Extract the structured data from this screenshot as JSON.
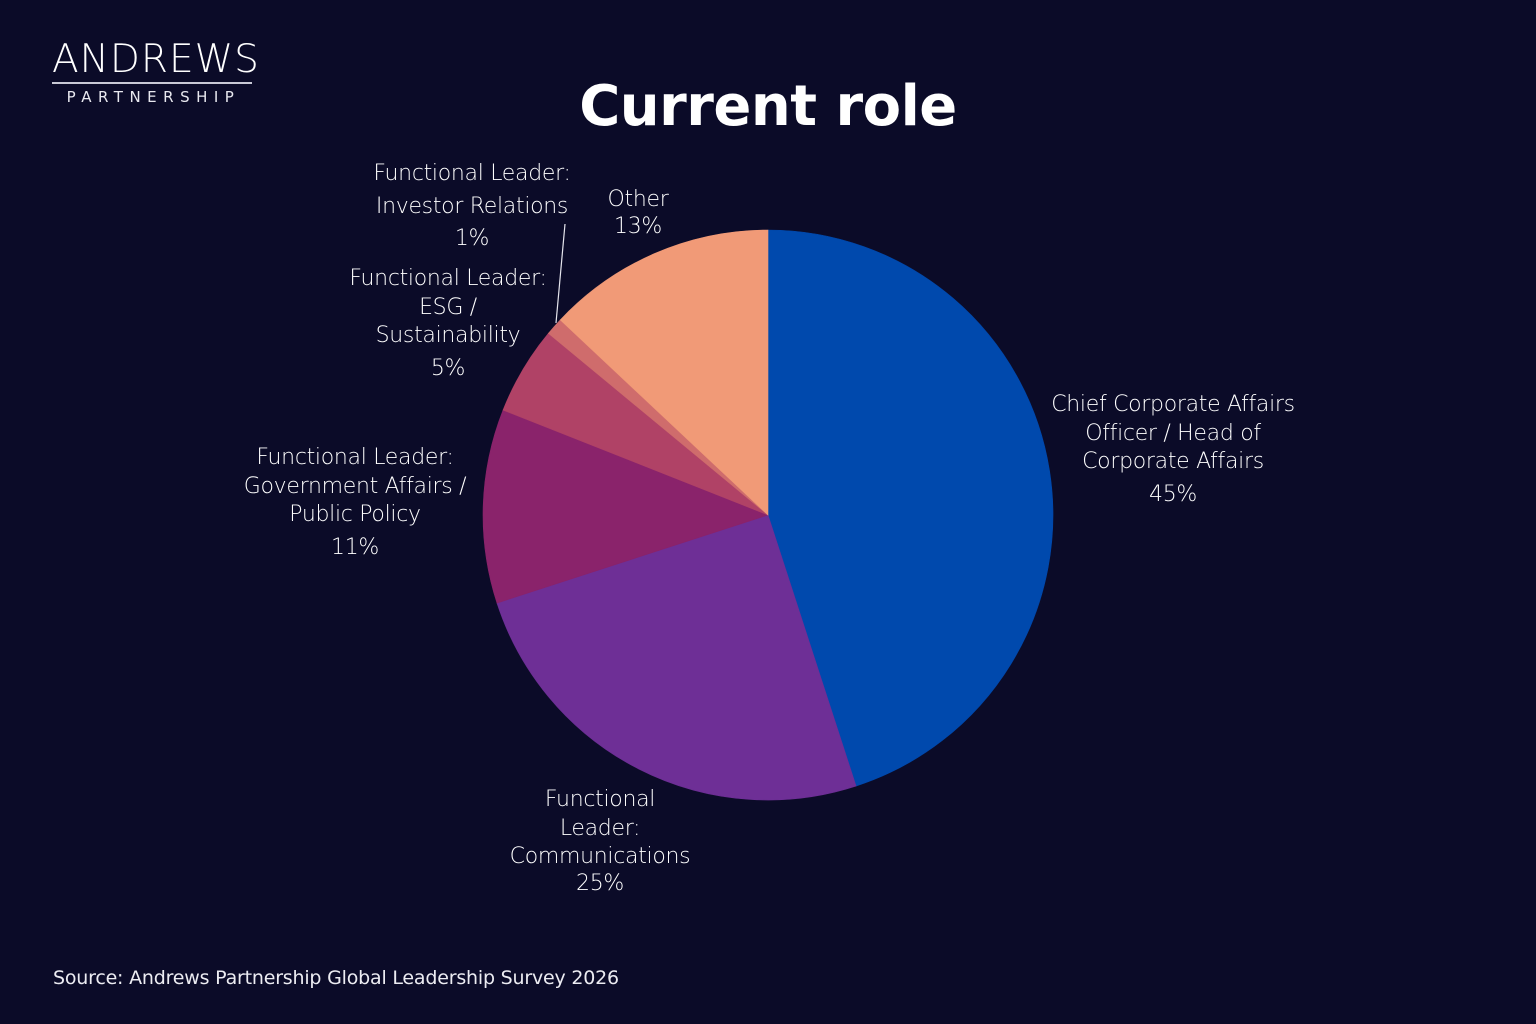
{
  "logo": {
    "main": "ANDREWS",
    "sub": "PARTNERSHIP"
  },
  "title": "Current role",
  "source": "Source: Andrews Partnership Global Leadership Survey 2026",
  "colors": {
    "background": "#0b0b28",
    "chief_corporate_affairs": "#0049ad",
    "communications": "#6e2f96",
    "government_affairs": "#8a236b",
    "esg": "#b04266",
    "investor_relations": "#cf6c6c",
    "other": "#f19a77"
  },
  "labels": {
    "cca": {
      "lines": [
        "Chief Corporate Affairs",
        "Officer / Head of",
        "Corporate Affairs"
      ],
      "pct": "45%"
    },
    "comms": {
      "lines": [
        "Functional",
        "Leader:",
        "Communications"
      ],
      "pct": "25%"
    },
    "gov": {
      "lines": [
        "Functional Leader:",
        "Government Affairs /",
        "Public Policy"
      ],
      "pct": "11%"
    },
    "esg": {
      "lines": [
        "Functional Leader:",
        "ESG /",
        "Sustainability"
      ],
      "pct": "5%"
    },
    "ir": {
      "lines": [
        "Functional Leader:",
        "Investor Relations"
      ],
      "pct": "1%"
    },
    "other": {
      "lines": [
        "Other"
      ],
      "pct": "13%"
    }
  },
  "chart_data": {
    "type": "pie",
    "title": "Current role",
    "categories": [
      "Chief Corporate Affairs Officer / Head of Corporate Affairs",
      "Functional Leader: Communications",
      "Functional Leader: Government Affairs / Public Policy",
      "Functional Leader: ESG / Sustainability",
      "Functional Leader: Investor Relations",
      "Other"
    ],
    "values": [
      45,
      25,
      11,
      5,
      1,
      13
    ],
    "unit": "%",
    "colors": [
      "#0049ad",
      "#6e2f96",
      "#8a236b",
      "#b04266",
      "#cf6c6c",
      "#f19a77"
    ],
    "start_angle": "12 o'clock",
    "direction": "clockwise",
    "legend": "none (direct labels)",
    "source": "Andrews Partnership Global Leadership Survey 2026"
  }
}
